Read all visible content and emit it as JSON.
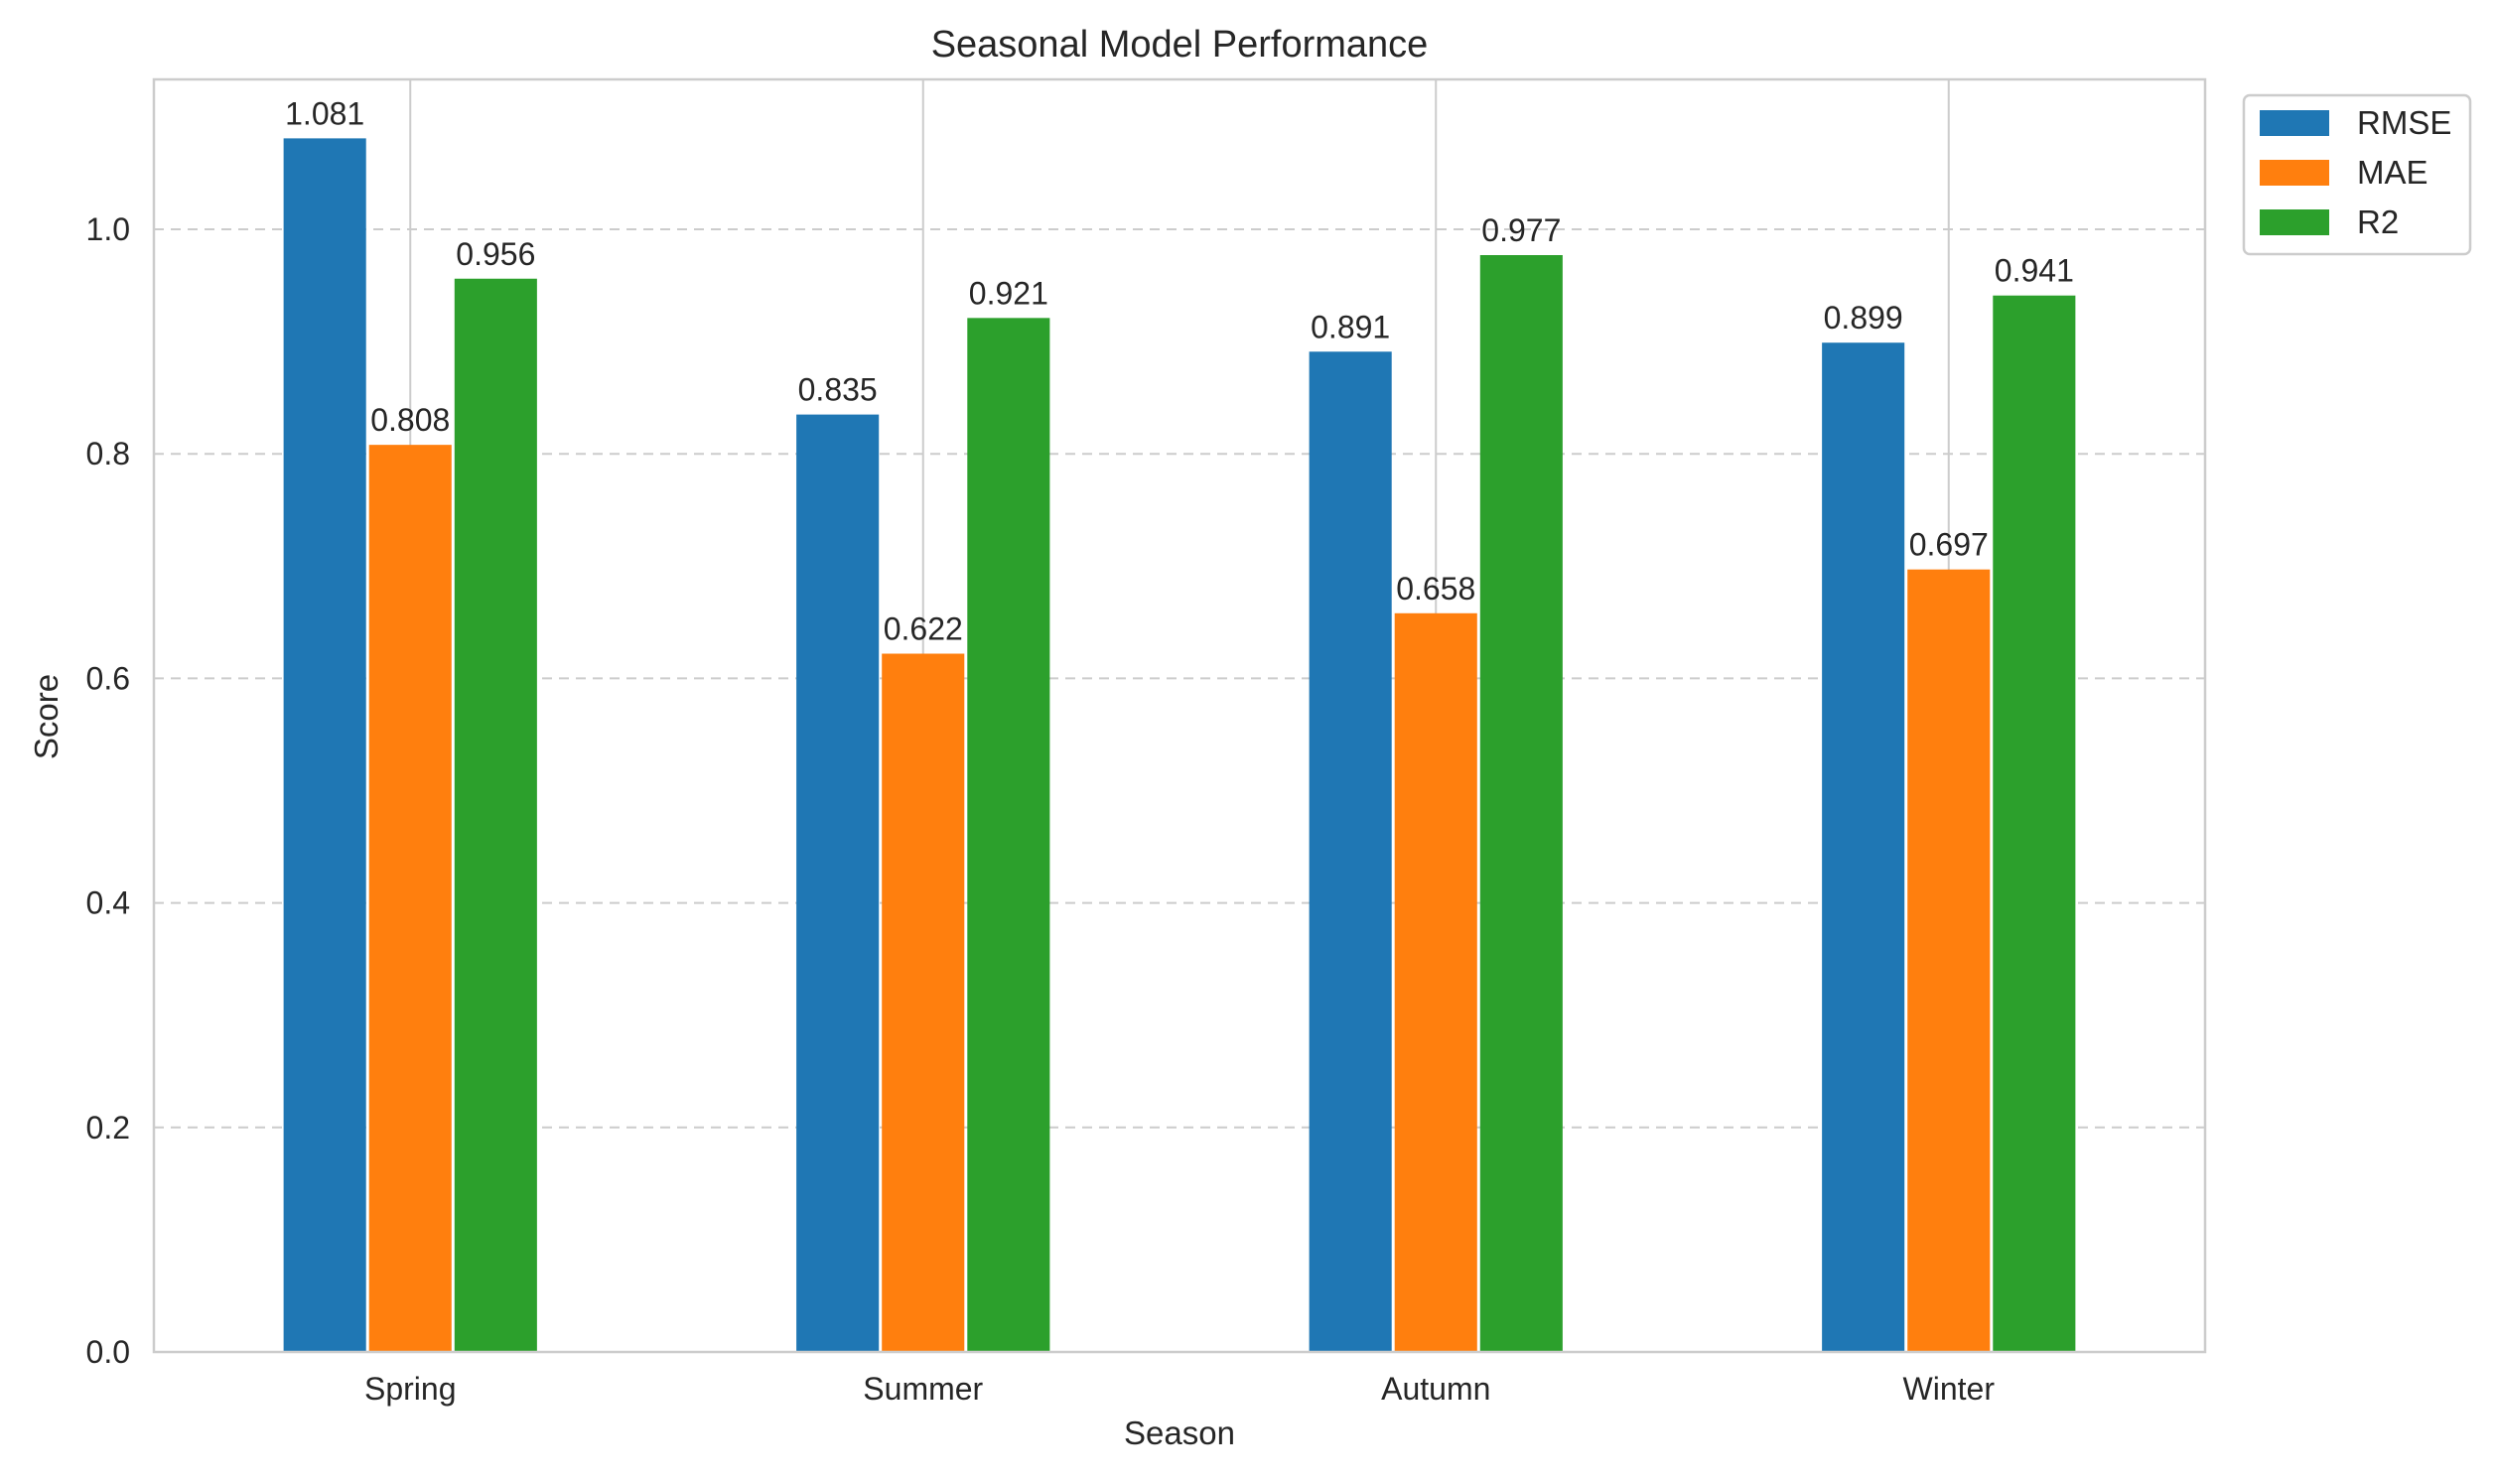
{
  "chart_data": {
    "type": "bar",
    "title": "Seasonal Model Performance",
    "xlabel": "Season",
    "ylabel": "Score",
    "categories": [
      "Spring",
      "Summer",
      "Autumn",
      "Winter"
    ],
    "series": [
      {
        "name": "RMSE",
        "color": "#1f77b4",
        "values": [
          1.081,
          0.835,
          0.891,
          0.899
        ],
        "labels": [
          "1.081",
          "0.835",
          "0.891",
          "0.899"
        ]
      },
      {
        "name": "MAE",
        "color": "#ff7f0e",
        "values": [
          0.808,
          0.622,
          0.658,
          0.697
        ],
        "labels": [
          "0.808",
          "0.622",
          "0.658",
          "0.697"
        ]
      },
      {
        "name": "R2",
        "color": "#2ca02c",
        "values": [
          0.956,
          0.921,
          0.977,
          0.941
        ],
        "labels": [
          "0.956",
          "0.921",
          "0.977",
          "0.941"
        ]
      }
    ],
    "ylim": [
      0.0,
      1.1335
    ],
    "yticks": [
      0.0,
      0.2,
      0.4,
      0.6,
      0.8,
      1.0
    ],
    "ytick_labels": [
      "0.0",
      "0.2",
      "0.4",
      "0.6",
      "0.8",
      "1.0"
    ],
    "grid": "y-dashed, x-solid",
    "legend_position": "outside-top-right"
  }
}
